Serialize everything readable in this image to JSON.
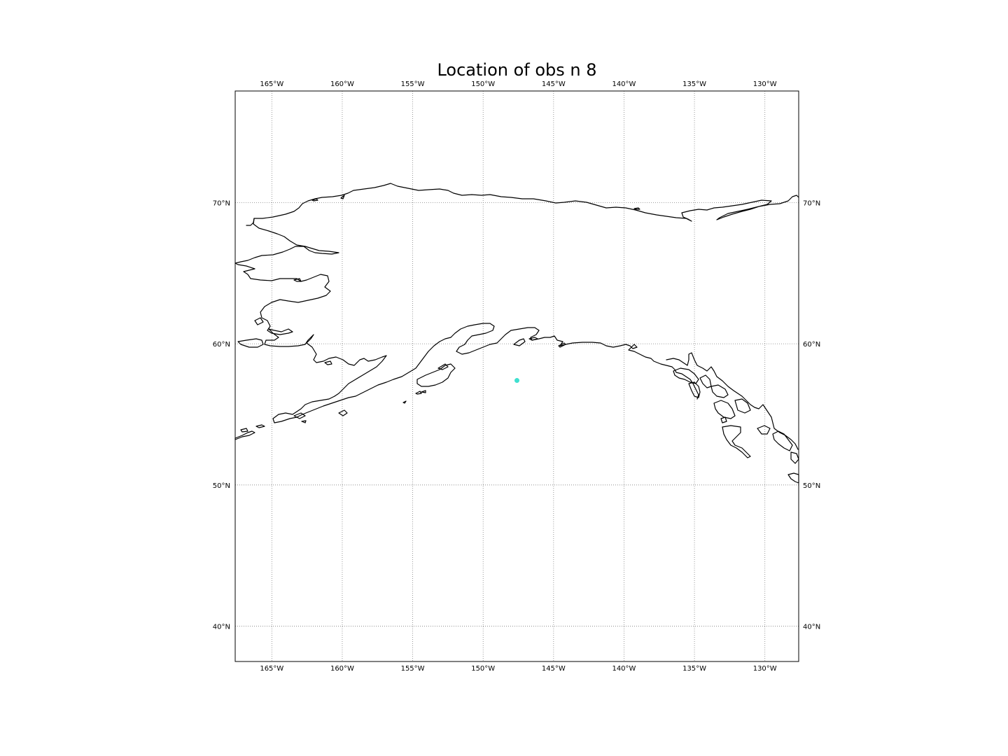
{
  "title": "Location of obs n 8",
  "chart_data": {
    "type": "scatter",
    "title": "Location of obs n 8",
    "xlim": [
      -167.6,
      -127.6
    ],
    "ylim": [
      37.5,
      77.9
    ],
    "lon_ticks": [
      {
        "value": -165,
        "label": "165°W"
      },
      {
        "value": -160,
        "label": "160°W"
      },
      {
        "value": -155,
        "label": "155°W"
      },
      {
        "value": -150,
        "label": "150°W"
      },
      {
        "value": -145,
        "label": "145°W"
      },
      {
        "value": -140,
        "label": "140°W"
      },
      {
        "value": -135,
        "label": "135°W"
      },
      {
        "value": -130,
        "label": "130°W"
      }
    ],
    "lat_ticks": [
      {
        "value": 70,
        "label": "70°N"
      },
      {
        "value": 60,
        "label": "60°N"
      },
      {
        "value": 50,
        "label": "50°N"
      },
      {
        "value": 40,
        "label": "40°N"
      }
    ],
    "grid": true,
    "points": [
      {
        "lon": -147.6,
        "lat": 57.4,
        "color": "#40e0d0"
      }
    ]
  }
}
